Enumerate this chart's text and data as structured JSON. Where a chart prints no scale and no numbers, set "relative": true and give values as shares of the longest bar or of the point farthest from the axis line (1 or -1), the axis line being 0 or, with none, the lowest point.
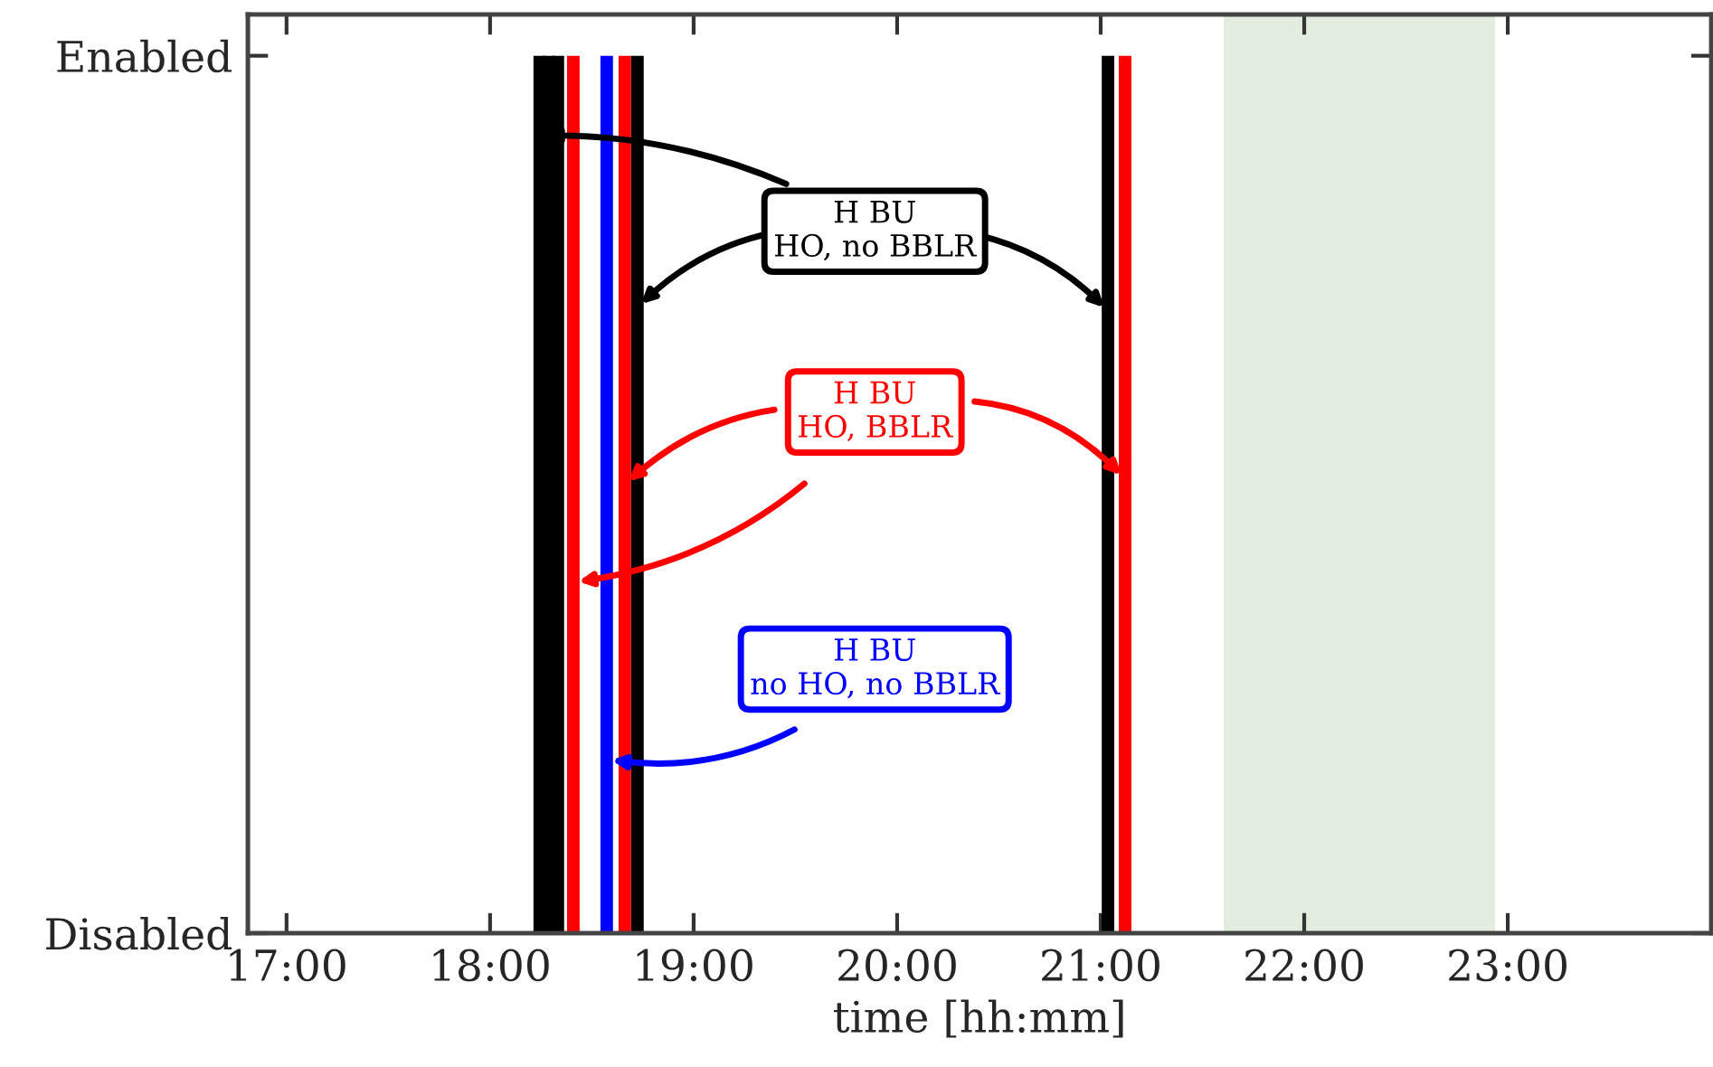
{
  "chart_data": {
    "type": "line",
    "xlabel": "time [hh:mm]",
    "xlim": [
      16.81,
      24.0
    ],
    "xticks": [
      {
        "value": 17,
        "label": "17:00"
      },
      {
        "value": 18,
        "label": "18:00"
      },
      {
        "value": 19,
        "label": "19:00"
      },
      {
        "value": 20,
        "label": "20:00"
      },
      {
        "value": 21,
        "label": "21:00"
      },
      {
        "value": 22,
        "label": "22:00"
      },
      {
        "value": 23,
        "label": "23:00"
      }
    ],
    "relative": true,
    "grid": false,
    "legend": false,
    "marker": "none",
    "line_style": "solid",
    "series": [
      {
        "color": "#000000",
        "x": [
          18.244,
          18.244
        ],
        "values": [
          0,
          1
        ]
      },
      {
        "color": "#000000",
        "x": [
          18.289,
          18.289
        ],
        "values": [
          0,
          1
        ]
      },
      {
        "color": "#000000",
        "x": [
          18.333,
          18.333
        ],
        "values": [
          0,
          1
        ]
      },
      {
        "color": "#ff0000",
        "x": [
          18.409,
          18.409
        ],
        "values": [
          0,
          1
        ]
      },
      {
        "color": "#0000ff",
        "x": [
          18.573,
          18.573
        ],
        "values": [
          0,
          1
        ]
      },
      {
        "color": "#ff0000",
        "x": [
          18.662,
          18.662
        ],
        "values": [
          0,
          1
        ]
      },
      {
        "color": "#000000",
        "x": [
          18.724,
          18.724
        ],
        "values": [
          0,
          1
        ]
      },
      {
        "color": "#000000",
        "x": [
          21.036,
          21.036
        ],
        "values": [
          0,
          1
        ]
      },
      {
        "color": "#ff0000",
        "x": [
          21.12,
          21.12
        ],
        "values": [
          0,
          1
        ]
      }
    ],
    "bands": [
      {
        "axis": "x",
        "from": 21.604,
        "to": 22.938,
        "color": "#e2ecdf"
      }
    ],
    "annotations": [
      "Disabled",
      "Enabled",
      "H BU\nHO, no BBLR",
      "H BU\nHO, BBLR",
      "H BU\nno HO, no BBLR"
    ]
  }
}
